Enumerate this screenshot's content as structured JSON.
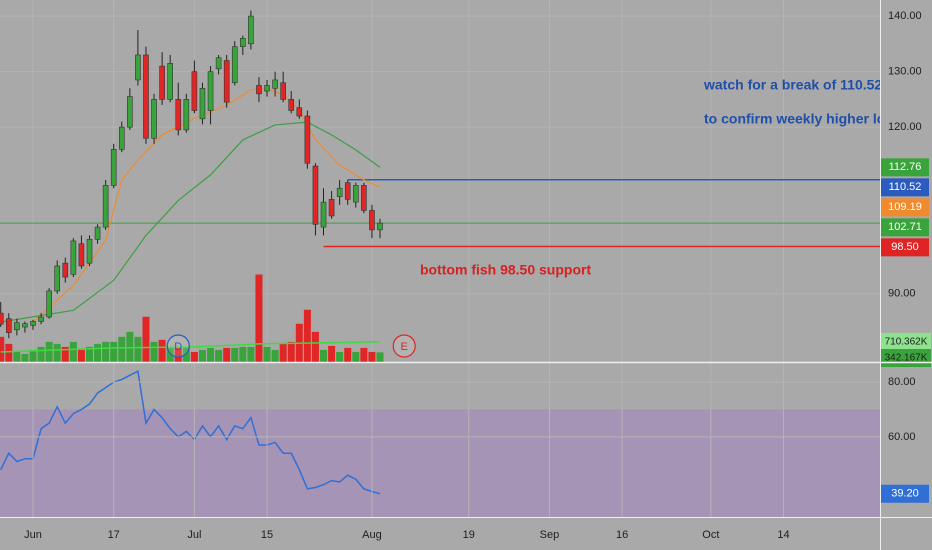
{
  "chart_data": {
    "type": "candlestick",
    "x": [
      -4,
      -3,
      -2,
      -1,
      0,
      1,
      2,
      3,
      4,
      5,
      6,
      7,
      8,
      9,
      10,
      11,
      12,
      13,
      14,
      15,
      16,
      17,
      18,
      19,
      20,
      21,
      22,
      23,
      24,
      25,
      26,
      27,
      28,
      29,
      30,
      31,
      32,
      33,
      34,
      35,
      36,
      37,
      38,
      39,
      40,
      41,
      42,
      43
    ],
    "open": [
      86.5,
      85.5,
      83.5,
      84.0,
      84.3,
      85.0,
      85.8,
      90.5,
      95.5,
      93.5,
      99.0,
      95.5,
      99.8,
      102.0,
      109.5,
      116.0,
      120.0,
      128.5,
      133.0,
      118.0,
      131.0,
      125.0,
      125.0,
      119.5,
      130.0,
      121.5,
      123.0,
      130.5,
      132.0,
      128.0,
      134.5,
      135.0,
      127.5,
      126.5,
      127.0,
      128.0,
      125.0,
      123.5,
      122.0,
      113.0,
      102.0,
      107.0,
      107.5,
      110.0,
      106.5,
      109.5,
      105.0,
      101.5
    ],
    "high": [
      88.5,
      86.5,
      85.5,
      85.0,
      85.3,
      86.5,
      91.0,
      96.0,
      96.5,
      100.0,
      100.5,
      100.5,
      102.5,
      110.5,
      117.0,
      121.0,
      127.0,
      137.5,
      134.5,
      126.0,
      133.5,
      133.0,
      128.0,
      126.0,
      132.0,
      128.0,
      131.0,
      133.0,
      133.0,
      135.5,
      136.5,
      141.0,
      129.0,
      128.5,
      130.0,
      130.0,
      126.5,
      125.0,
      123.0,
      113.5,
      109.0,
      108.5,
      110.5,
      110.5,
      110.0,
      110.0,
      106.0,
      103.5
    ],
    "low": [
      84.0,
      82.0,
      82.5,
      83.0,
      83.5,
      84.5,
      85.5,
      90.0,
      92.0,
      93.0,
      94.5,
      95.0,
      99.0,
      101.5,
      109.0,
      115.5,
      119.5,
      127.5,
      117.0,
      117.0,
      124.0,
      124.5,
      118.5,
      119.0,
      122.5,
      120.5,
      120.5,
      129.5,
      123.5,
      127.5,
      133.0,
      134.0,
      124.5,
      125.5,
      125.5,
      124.5,
      122.5,
      121.5,
      112.5,
      100.5,
      100.5,
      103.5,
      106.0,
      106.0,
      105.5,
      104.5,
      100.0,
      100.0
    ],
    "close": [
      84.5,
      83.0,
      84.8,
      84.6,
      85.0,
      85.8,
      90.5,
      95.0,
      93.0,
      99.5,
      95.0,
      99.8,
      102.0,
      109.5,
      116.0,
      120.0,
      125.5,
      133.0,
      118.0,
      125.0,
      125.0,
      131.5,
      119.5,
      125.0,
      123.0,
      127.0,
      130.0,
      132.5,
      124.5,
      134.5,
      136.0,
      140.0,
      126.0,
      127.5,
      128.5,
      125.0,
      123.0,
      122.0,
      113.5,
      102.5,
      106.5,
      104.0,
      109.0,
      107.0,
      109.5,
      105.0,
      101.5,
      102.71
    ],
    "up_color": "#3aa43c",
    "down_color": "#e22626",
    "xlim": [
      -4.09,
      104.96
    ],
    "xticks": [
      {
        "value": 0,
        "label": "Jun"
      },
      {
        "value": 10,
        "label": "17"
      },
      {
        "value": 20,
        "label": "Jul"
      },
      {
        "value": 29,
        "label": "15"
      },
      {
        "value": 42,
        "label": "Aug"
      },
      {
        "value": 54,
        "label": "19"
      },
      {
        "value": 64,
        "label": "Sep"
      },
      {
        "value": 73,
        "label": "16"
      },
      {
        "value": 84,
        "label": "Oct"
      },
      {
        "value": 93,
        "label": "14"
      }
    ],
    "ylim": [
      77.7,
      142.9
    ],
    "yticks": [
      {
        "value": 140,
        "label": "140.00"
      },
      {
        "value": 130,
        "label": "130.00"
      },
      {
        "value": 120,
        "label": "120.00"
      },
      {
        "value": 90,
        "label": "90.00"
      }
    ],
    "grid": true,
    "lines": [
      {
        "color": "#f08a2c",
        "x": [
          0,
          5,
          9,
          11,
          13,
          16,
          20,
          24,
          27,
          29,
          31,
          33,
          35,
          38,
          41,
          43
        ],
        "values": [
          84.9,
          91.5,
          99.6,
          110.5,
          114.1,
          118.6,
          121.6,
          124.0,
          126.7,
          127.0,
          125.8,
          123.1,
          117.7,
          113.2,
          110.5,
          109.19
        ]
      },
      {
        "color": "#3f9e45",
        "x": [
          -4,
          5,
          10,
          14,
          18,
          22,
          26,
          30,
          34,
          37,
          40,
          43
        ],
        "values": [
          84.9,
          87.0,
          92.4,
          100.5,
          106.8,
          111.4,
          117.7,
          120.4,
          120.9,
          118.6,
          115.9,
          112.76
        ]
      }
    ],
    "hlines": [
      {
        "value": 110.52,
        "color": "#2c5bbf",
        "from_x": 39
      },
      {
        "value": 98.5,
        "color": "#e02424",
        "from_x": 36
      },
      {
        "value": 102.71,
        "color": "#3aa43c"
      }
    ],
    "price_levels": [
      {
        "value": 112.76,
        "label": "112.76",
        "color": "#3aa43c"
      },
      {
        "value": 110.52,
        "label": "110.52",
        "color": "#2c5bbf"
      },
      {
        "value": 109.19,
        "label": "109.19",
        "color": "#f08a2c"
      },
      {
        "value": 102.71,
        "label": "102.71",
        "color": "#3aa43c"
      },
      {
        "value": 98.5,
        "label": "98.50",
        "color": "#e02424"
      }
    ],
    "annotations": [
      "watch for a break of 110.52",
      "to confirm weekly higher low",
      "bottom fish 98.50 support"
    ],
    "events": [
      {
        "label": "D",
        "x": 18,
        "color": "#2c5bbf"
      },
      {
        "label": "E",
        "x": 46,
        "color": "#e02424"
      }
    ],
    "volume": {
      "values": [
        887500,
        639000,
        355000,
        284000,
        426000,
        532500,
        710000,
        639000,
        532500,
        710000,
        426000,
        532500,
        639000,
        710000,
        710000,
        887500,
        1065000,
        887500,
        1597500,
        710000,
        781000,
        532500,
        497000,
        532500,
        355000,
        426000,
        497000,
        426000,
        497000,
        497000,
        532500,
        532500,
        3088500,
        532500,
        426000,
        639000,
        710000,
        1349000,
        1846000,
        1065000,
        426000,
        568000,
        355000,
        497000,
        355000,
        497000,
        355000,
        342167
      ],
      "ylim": [
        0,
        12780000
      ],
      "ma_color": "#41d941",
      "ma_x": [
        -4,
        10,
        20,
        28,
        43
      ],
      "ma_values": [
        355000,
        497000,
        532500,
        639000,
        710362
      ],
      "labels": [
        {
          "value": 710362,
          "label": "710.362K",
          "color": "#8fe08f"
        },
        {
          "value": 342167,
          "label": "342.167K",
          "color": "#3aa43c"
        }
      ]
    },
    "rsi": {
      "values": [
        48,
        54,
        51,
        52,
        52,
        63,
        65,
        71,
        65,
        68.5,
        70,
        72,
        76,
        78,
        80,
        81,
        82.5,
        84,
        65,
        70,
        67,
        63,
        60,
        62,
        59,
        64,
        60,
        64,
        59,
        64,
        63,
        67,
        57,
        57,
        58,
        54,
        54,
        48,
        41,
        41.5,
        42.5,
        44,
        43.5,
        46,
        44.5,
        41,
        40,
        39.2
      ],
      "color": "#2f6fd6",
      "ylim": [
        30.7,
        87.0
      ],
      "yticks": [
        {
          "value": 80,
          "label": "80.00"
        },
        {
          "value": 60,
          "label": "60.00"
        }
      ],
      "band": [
        30,
        70
      ],
      "level": {
        "value": 39.2,
        "label": "39.20",
        "color": "#2f6fd6"
      }
    }
  }
}
